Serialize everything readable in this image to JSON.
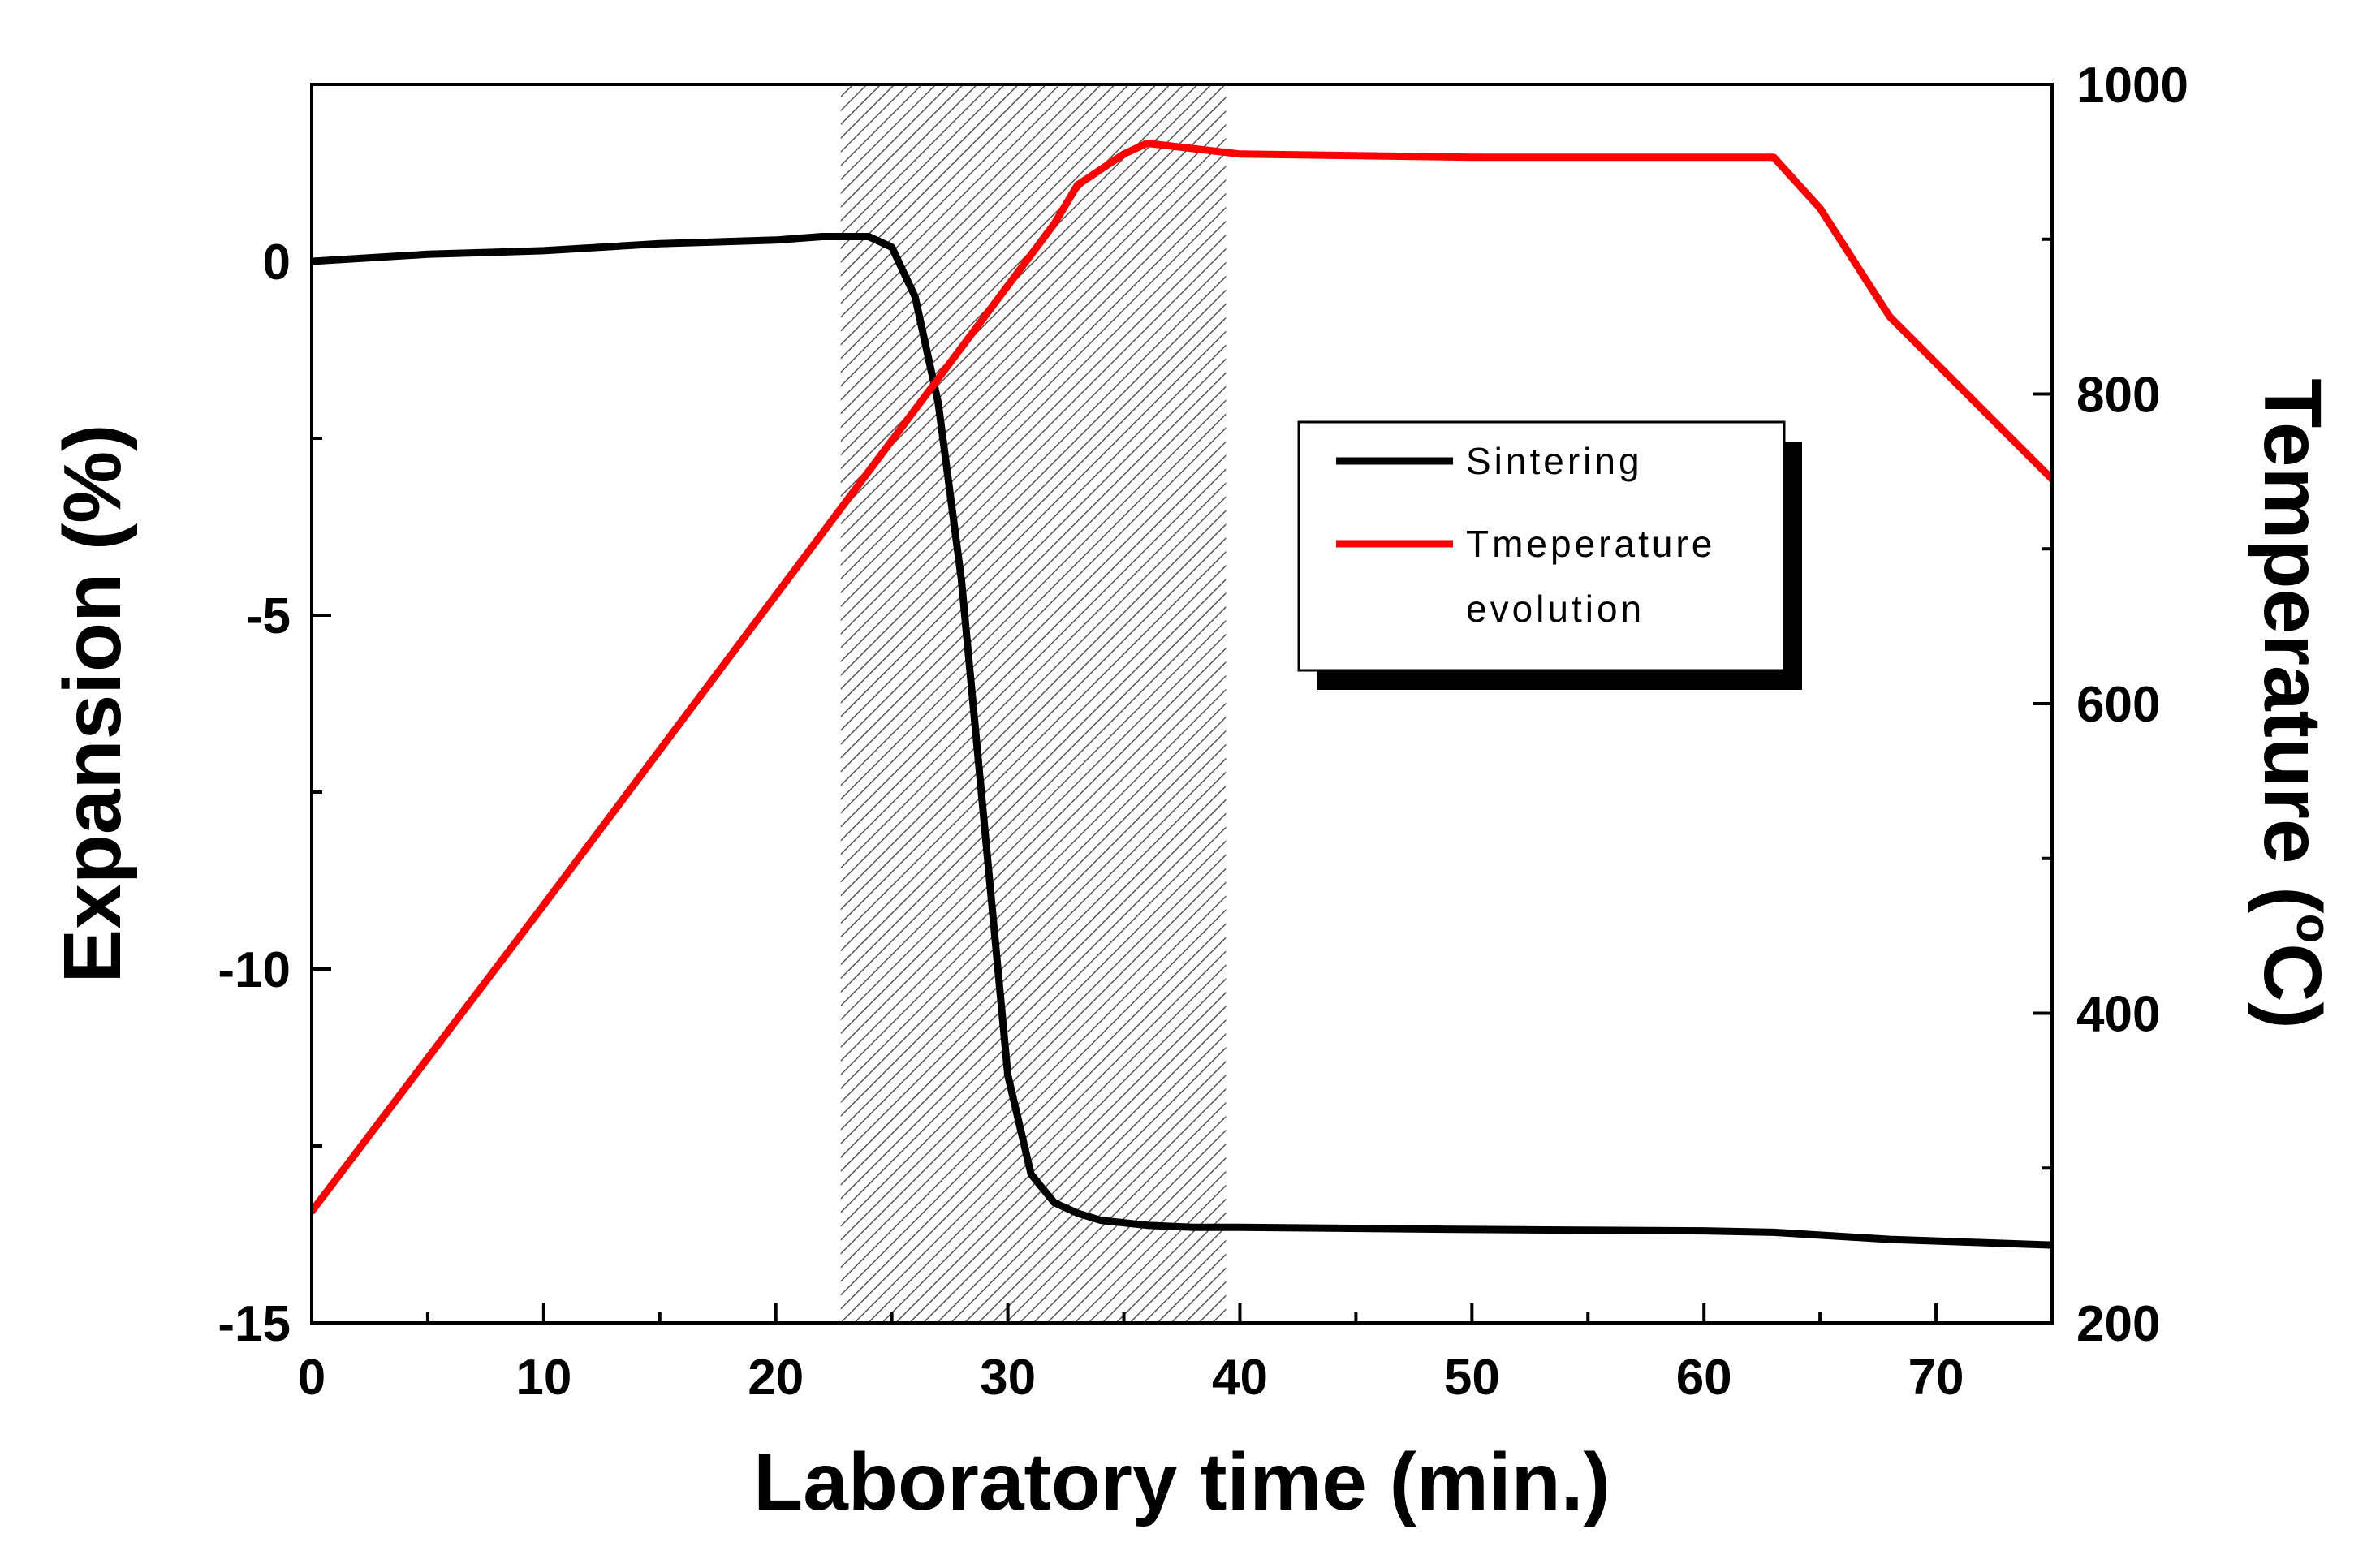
{
  "chart_data": {
    "type": "line",
    "title": "",
    "xlabel": "Laboratory time (min.)",
    "ylabel_left": "Expansion (%)",
    "ylabel_right_prefix": "Temperature (",
    "ylabel_right_degree": "o",
    "ylabel_right_suffix": "C)",
    "xlim": [
      0,
      75
    ],
    "ylim_left": [
      -15,
      2.5
    ],
    "ylim_right": [
      200,
      1000
    ],
    "x_ticks": [
      0,
      10,
      20,
      30,
      40,
      50,
      60,
      70
    ],
    "x_tick_labels": [
      "0",
      "10",
      "20",
      "30",
      "40",
      "50",
      "60",
      "70"
    ],
    "y_left_ticks": [
      0,
      -5,
      -10,
      -15
    ],
    "y_left_tick_labels": [
      "0",
      "-5",
      "-10",
      "-15"
    ],
    "y_right_ticks": [
      1000,
      800,
      600,
      400,
      200
    ],
    "y_right_tick_labels": [
      "1000",
      "800",
      "600",
      "400",
      "200"
    ],
    "shaded_region": {
      "x_start": 22.8,
      "x_end": 39.4,
      "pattern": "hatched"
    },
    "grid": false,
    "legend_position": "center-right",
    "series": [
      {
        "name": "Sintering",
        "axis": "left",
        "color": "#000000",
        "x": [
          0,
          5,
          10,
          15,
          20,
          22,
          24,
          25,
          26,
          27,
          28,
          29,
          30,
          31,
          32,
          33,
          34,
          36,
          38,
          40,
          50,
          60,
          63,
          68,
          75
        ],
        "y": [
          0,
          0.1,
          0.15,
          0.25,
          0.3,
          0.35,
          0.35,
          0.2,
          -0.5,
          -2.0,
          -4.5,
          -8.0,
          -11.5,
          -12.9,
          -13.3,
          -13.45,
          -13.55,
          -13.62,
          -13.65,
          -13.65,
          -13.68,
          -13.7,
          -13.72,
          -13.82,
          -13.9
        ]
      },
      {
        "name": "Tmeperature evolution",
        "axis": "right",
        "color": "#ff0000",
        "x": [
          0,
          10,
          20,
          23,
          26,
          29,
          32,
          33,
          35,
          36,
          40,
          50,
          60,
          63,
          65,
          68,
          72,
          75
        ],
        "y": [
          272,
          470,
          670,
          730,
          790,
          850,
          910,
          935,
          955,
          962,
          955,
          953,
          953,
          953,
          920,
          850,
          790,
          745
        ]
      }
    ],
    "legend_entries": [
      {
        "label_lines": [
          "Sintering"
        ],
        "color": "#000000"
      },
      {
        "label_lines": [
          "Tmeperature",
          "evolution"
        ],
        "color": "#ff0000"
      }
    ]
  }
}
